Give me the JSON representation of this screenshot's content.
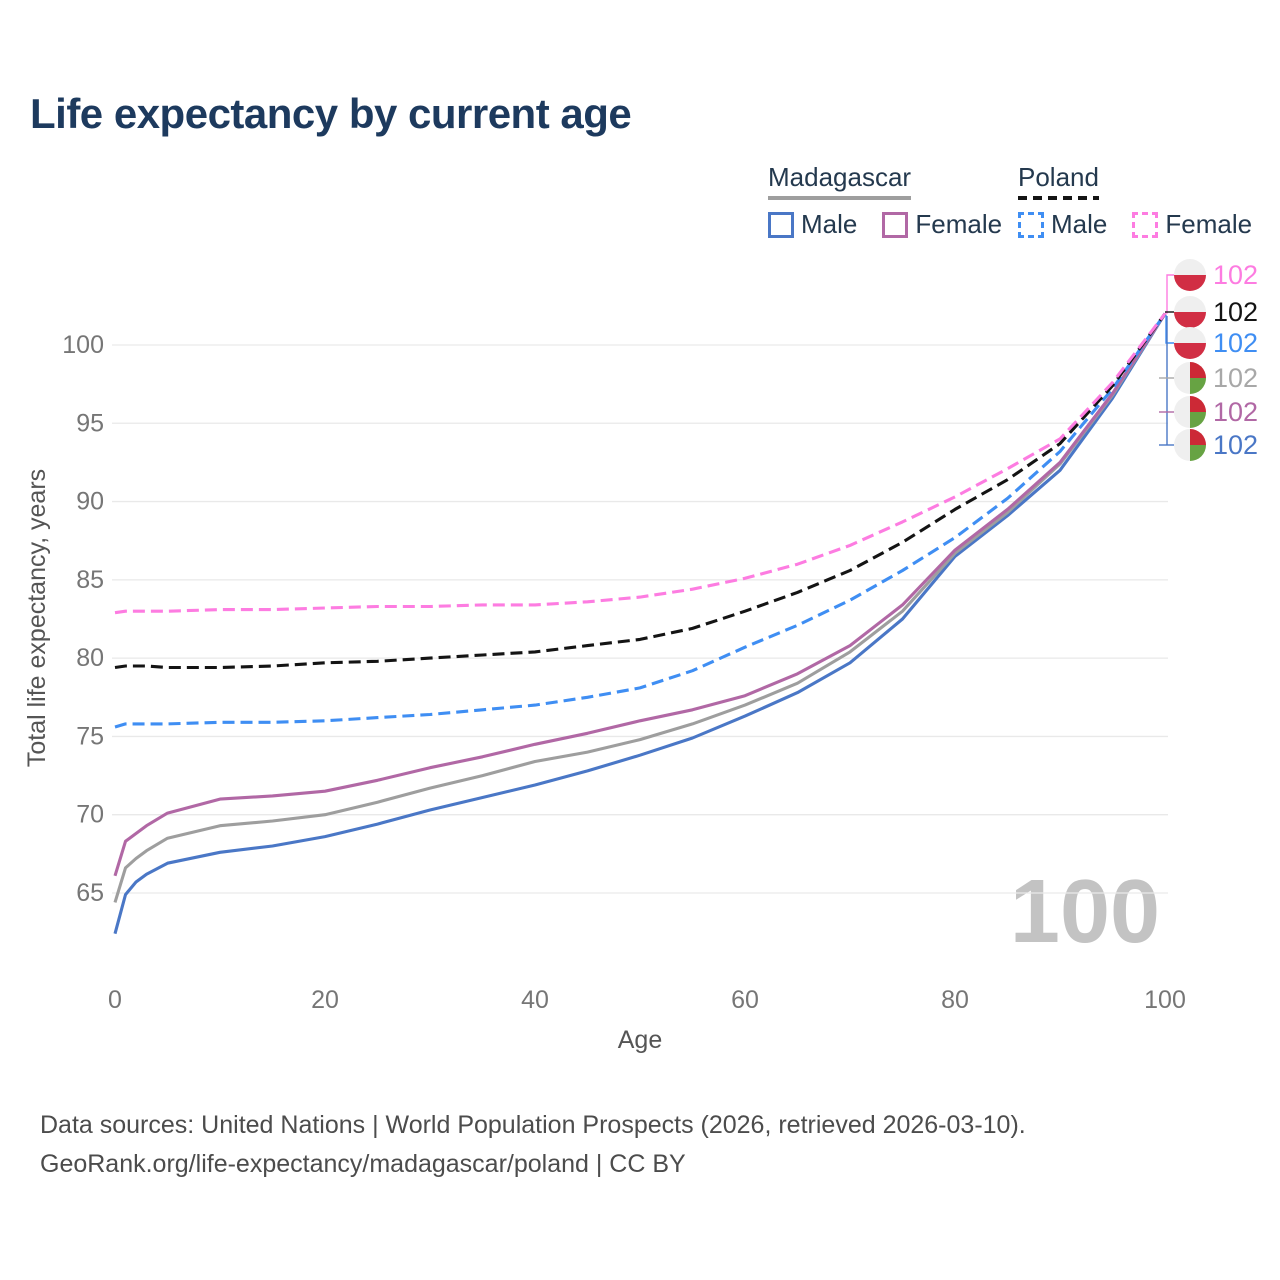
{
  "title": "Life expectancy by current age",
  "legend": {
    "madagascar": {
      "label": "Madagascar",
      "male_label": "Male",
      "female_label": "Female"
    },
    "poland": {
      "label": "Poland",
      "male_label": "Male",
      "female_label": "Female"
    }
  },
  "watermark": {
    "text": "100",
    "color": "#c3c3c3"
  },
  "footer": {
    "line1": "Data sources: United Nations | World Population Prospects (2026, retrieved 2026-03-10).",
    "line2": "GeoRank.org/life-expectancy/madagascar/poland | CC BY"
  },
  "colors": {
    "title": "#1d3a5e",
    "tick": "#767676",
    "axis_label": "#555555",
    "grid": "#e9e9e9",
    "legend_text": "#24394e",
    "poland_flag_red": "#d12e44",
    "madagascar_flag_red": "#cc2936",
    "madagascar_flag_green": "#67a343",
    "flag_white": "#efefef"
  },
  "chart_data": {
    "type": "line",
    "title": "Life expectancy by current age",
    "xlabel": "Age",
    "ylabel": "Total life expectancy, years",
    "xlim": [
      0,
      100
    ],
    "ylim": [
      62,
      103
    ],
    "xticks": [
      0,
      20,
      40,
      60,
      80,
      100
    ],
    "yticks": [
      65,
      70,
      75,
      80,
      85,
      90,
      95,
      100
    ],
    "grid": "horizontal",
    "current_age_frame": "100",
    "ages": [
      0,
      1,
      2,
      3,
      5,
      10,
      15,
      20,
      25,
      30,
      35,
      40,
      45,
      50,
      55,
      60,
      65,
      70,
      75,
      80,
      85,
      90,
      95,
      100
    ],
    "series": [
      {
        "name": "Madagascar Male",
        "country": "Madagascar",
        "sex": "Male",
        "style": "solid",
        "color": "#4a77c6",
        "values": [
          62.4,
          64.9,
          65.7,
          66.2,
          66.9,
          67.6,
          68.0,
          68.6,
          69.4,
          70.3,
          71.1,
          71.9,
          72.8,
          73.8,
          74.9,
          76.3,
          77.8,
          79.7,
          82.5,
          86.5,
          89.1,
          92.0,
          96.6,
          102
        ]
      },
      {
        "name": "Madagascar",
        "country": "Madagascar",
        "sex": "Both",
        "style": "solid",
        "color": "#9e9e9e",
        "values": [
          64.4,
          66.6,
          67.2,
          67.7,
          68.5,
          69.3,
          69.6,
          70.0,
          70.8,
          71.7,
          72.5,
          73.4,
          74.0,
          74.8,
          75.8,
          77.0,
          78.4,
          80.4,
          83.0,
          86.7,
          89.3,
          92.4,
          96.8,
          102
        ]
      },
      {
        "name": "Madagascar Female",
        "country": "Madagascar",
        "sex": "Female",
        "style": "solid",
        "color": "#b168a5",
        "values": [
          66.1,
          68.3,
          68.8,
          69.3,
          70.1,
          71.0,
          71.2,
          71.5,
          72.2,
          73.0,
          73.7,
          74.5,
          75.2,
          76.0,
          76.7,
          77.6,
          79.0,
          80.8,
          83.4,
          86.9,
          89.5,
          92.5,
          96.9,
          102
        ]
      },
      {
        "name": "Poland Male",
        "country": "Poland",
        "sex": "Male",
        "style": "dashed",
        "color": "#3f8ef3",
        "values": [
          75.6,
          75.8,
          75.8,
          75.8,
          75.8,
          75.9,
          75.9,
          76.0,
          76.2,
          76.4,
          76.7,
          77.0,
          77.5,
          78.1,
          79.2,
          80.7,
          82.1,
          83.7,
          85.6,
          87.7,
          90.2,
          93.2,
          97.2,
          102
        ]
      },
      {
        "name": "Poland",
        "country": "Poland",
        "sex": "Both",
        "style": "dashed",
        "color": "#141414",
        "values": [
          79.4,
          79.5,
          79.5,
          79.5,
          79.4,
          79.4,
          79.5,
          79.7,
          79.8,
          80.0,
          80.2,
          80.4,
          80.8,
          81.2,
          81.9,
          83.0,
          84.2,
          85.6,
          87.4,
          89.5,
          91.4,
          93.7,
          97.4,
          102
        ]
      },
      {
        "name": "Poland Female",
        "country": "Poland",
        "sex": "Female",
        "style": "dashed",
        "color": "#fd7ce1",
        "values": [
          82.9,
          83.0,
          83.0,
          83.0,
          83.0,
          83.1,
          83.1,
          83.2,
          83.3,
          83.3,
          83.4,
          83.4,
          83.6,
          83.9,
          84.4,
          85.1,
          86.0,
          87.2,
          88.7,
          90.3,
          92.1,
          94.0,
          97.6,
          102
        ]
      }
    ],
    "end_labels": [
      {
        "value": "102",
        "series": "Poland Female",
        "color": "#fd7ce1",
        "flag": "poland"
      },
      {
        "value": "102",
        "series": "Poland",
        "color": "#141414",
        "flag": "poland"
      },
      {
        "value": "102",
        "series": "Poland Male",
        "color": "#3f8ef3",
        "flag": "poland"
      },
      {
        "value": "102",
        "series": "Madagascar",
        "color": "#a8a8a8",
        "flag": "madagascar"
      },
      {
        "value": "102",
        "series": "Madagascar Female",
        "color": "#b168a5",
        "flag": "madagascar"
      },
      {
        "value": "102",
        "series": "Madagascar Male",
        "color": "#4a77c6",
        "flag": "madagascar"
      }
    ]
  }
}
